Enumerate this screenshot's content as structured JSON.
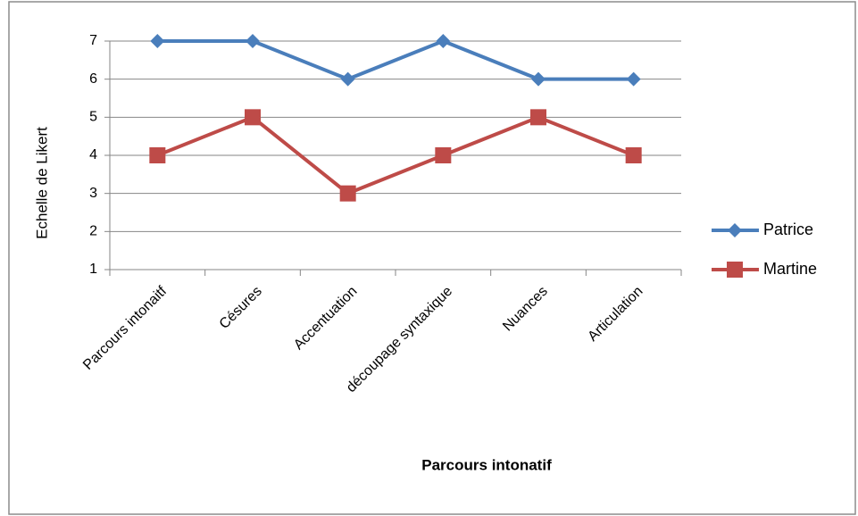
{
  "chart_data": {
    "type": "line",
    "categories": [
      "Parcours intonaitf",
      "Césures",
      "Accentuation",
      "découpage syntaxique",
      "Nuances",
      "Articulation"
    ],
    "series": [
      {
        "name": "Patrice",
        "color": "#4a7ebb",
        "marker": "diamond",
        "values": [
          7,
          7,
          6,
          7,
          6,
          6
        ]
      },
      {
        "name": "Martine",
        "color": "#be4b48",
        "marker": "square",
        "values": [
          4,
          5,
          3,
          4,
          5,
          4
        ]
      }
    ],
    "ylim": [
      1,
      7
    ],
    "yticks": [
      1,
      2,
      3,
      4,
      5,
      6,
      7
    ],
    "grid": true,
    "xlabel": "Parcours intonatif",
    "ylabel": "Echelle de Likert",
    "legend": "right"
  }
}
